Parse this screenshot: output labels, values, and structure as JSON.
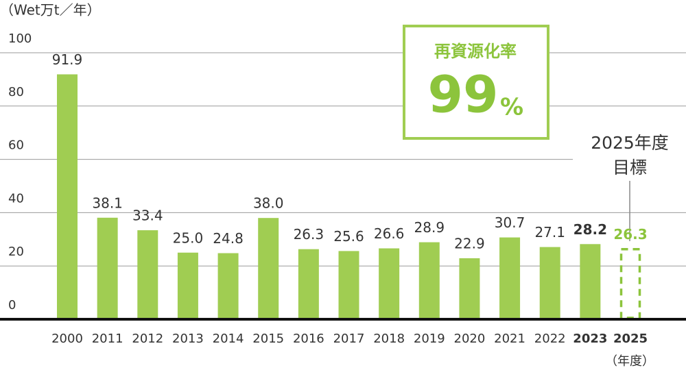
{
  "chart_data": {
    "type": "bar",
    "ylabel": "（Wet万t／年）",
    "xlabel": "（年度）",
    "categories": [
      "2000",
      "2011",
      "2012",
      "2013",
      "2014",
      "2015",
      "2016",
      "2017",
      "2018",
      "2019",
      "2020",
      "2021",
      "2022",
      "2023",
      "2025"
    ],
    "values": [
      91.9,
      38.1,
      33.4,
      25.0,
      24.8,
      38.0,
      26.3,
      25.6,
      26.6,
      28.9,
      22.9,
      30.7,
      27.1,
      28.2,
      26.3
    ],
    "value_labels": [
      "91.9",
      "38.1",
      "33.4",
      "25.0",
      "24.8",
      "38.0",
      "26.3",
      "25.6",
      "26.6",
      "28.9",
      "22.9",
      "30.7",
      "27.1",
      "28.2",
      "26.3"
    ],
    "color": "#a0cd52",
    "target_color": "#8cc43c",
    "ylim": [
      0,
      100
    ],
    "yticks": [
      0,
      20,
      40,
      60,
      80,
      100
    ],
    "grid": true,
    "annotation": [
      "2025年度",
      "目標"
    ],
    "rate_box": {
      "label": "再資源化率",
      "value": 99,
      "unit": "%"
    }
  }
}
